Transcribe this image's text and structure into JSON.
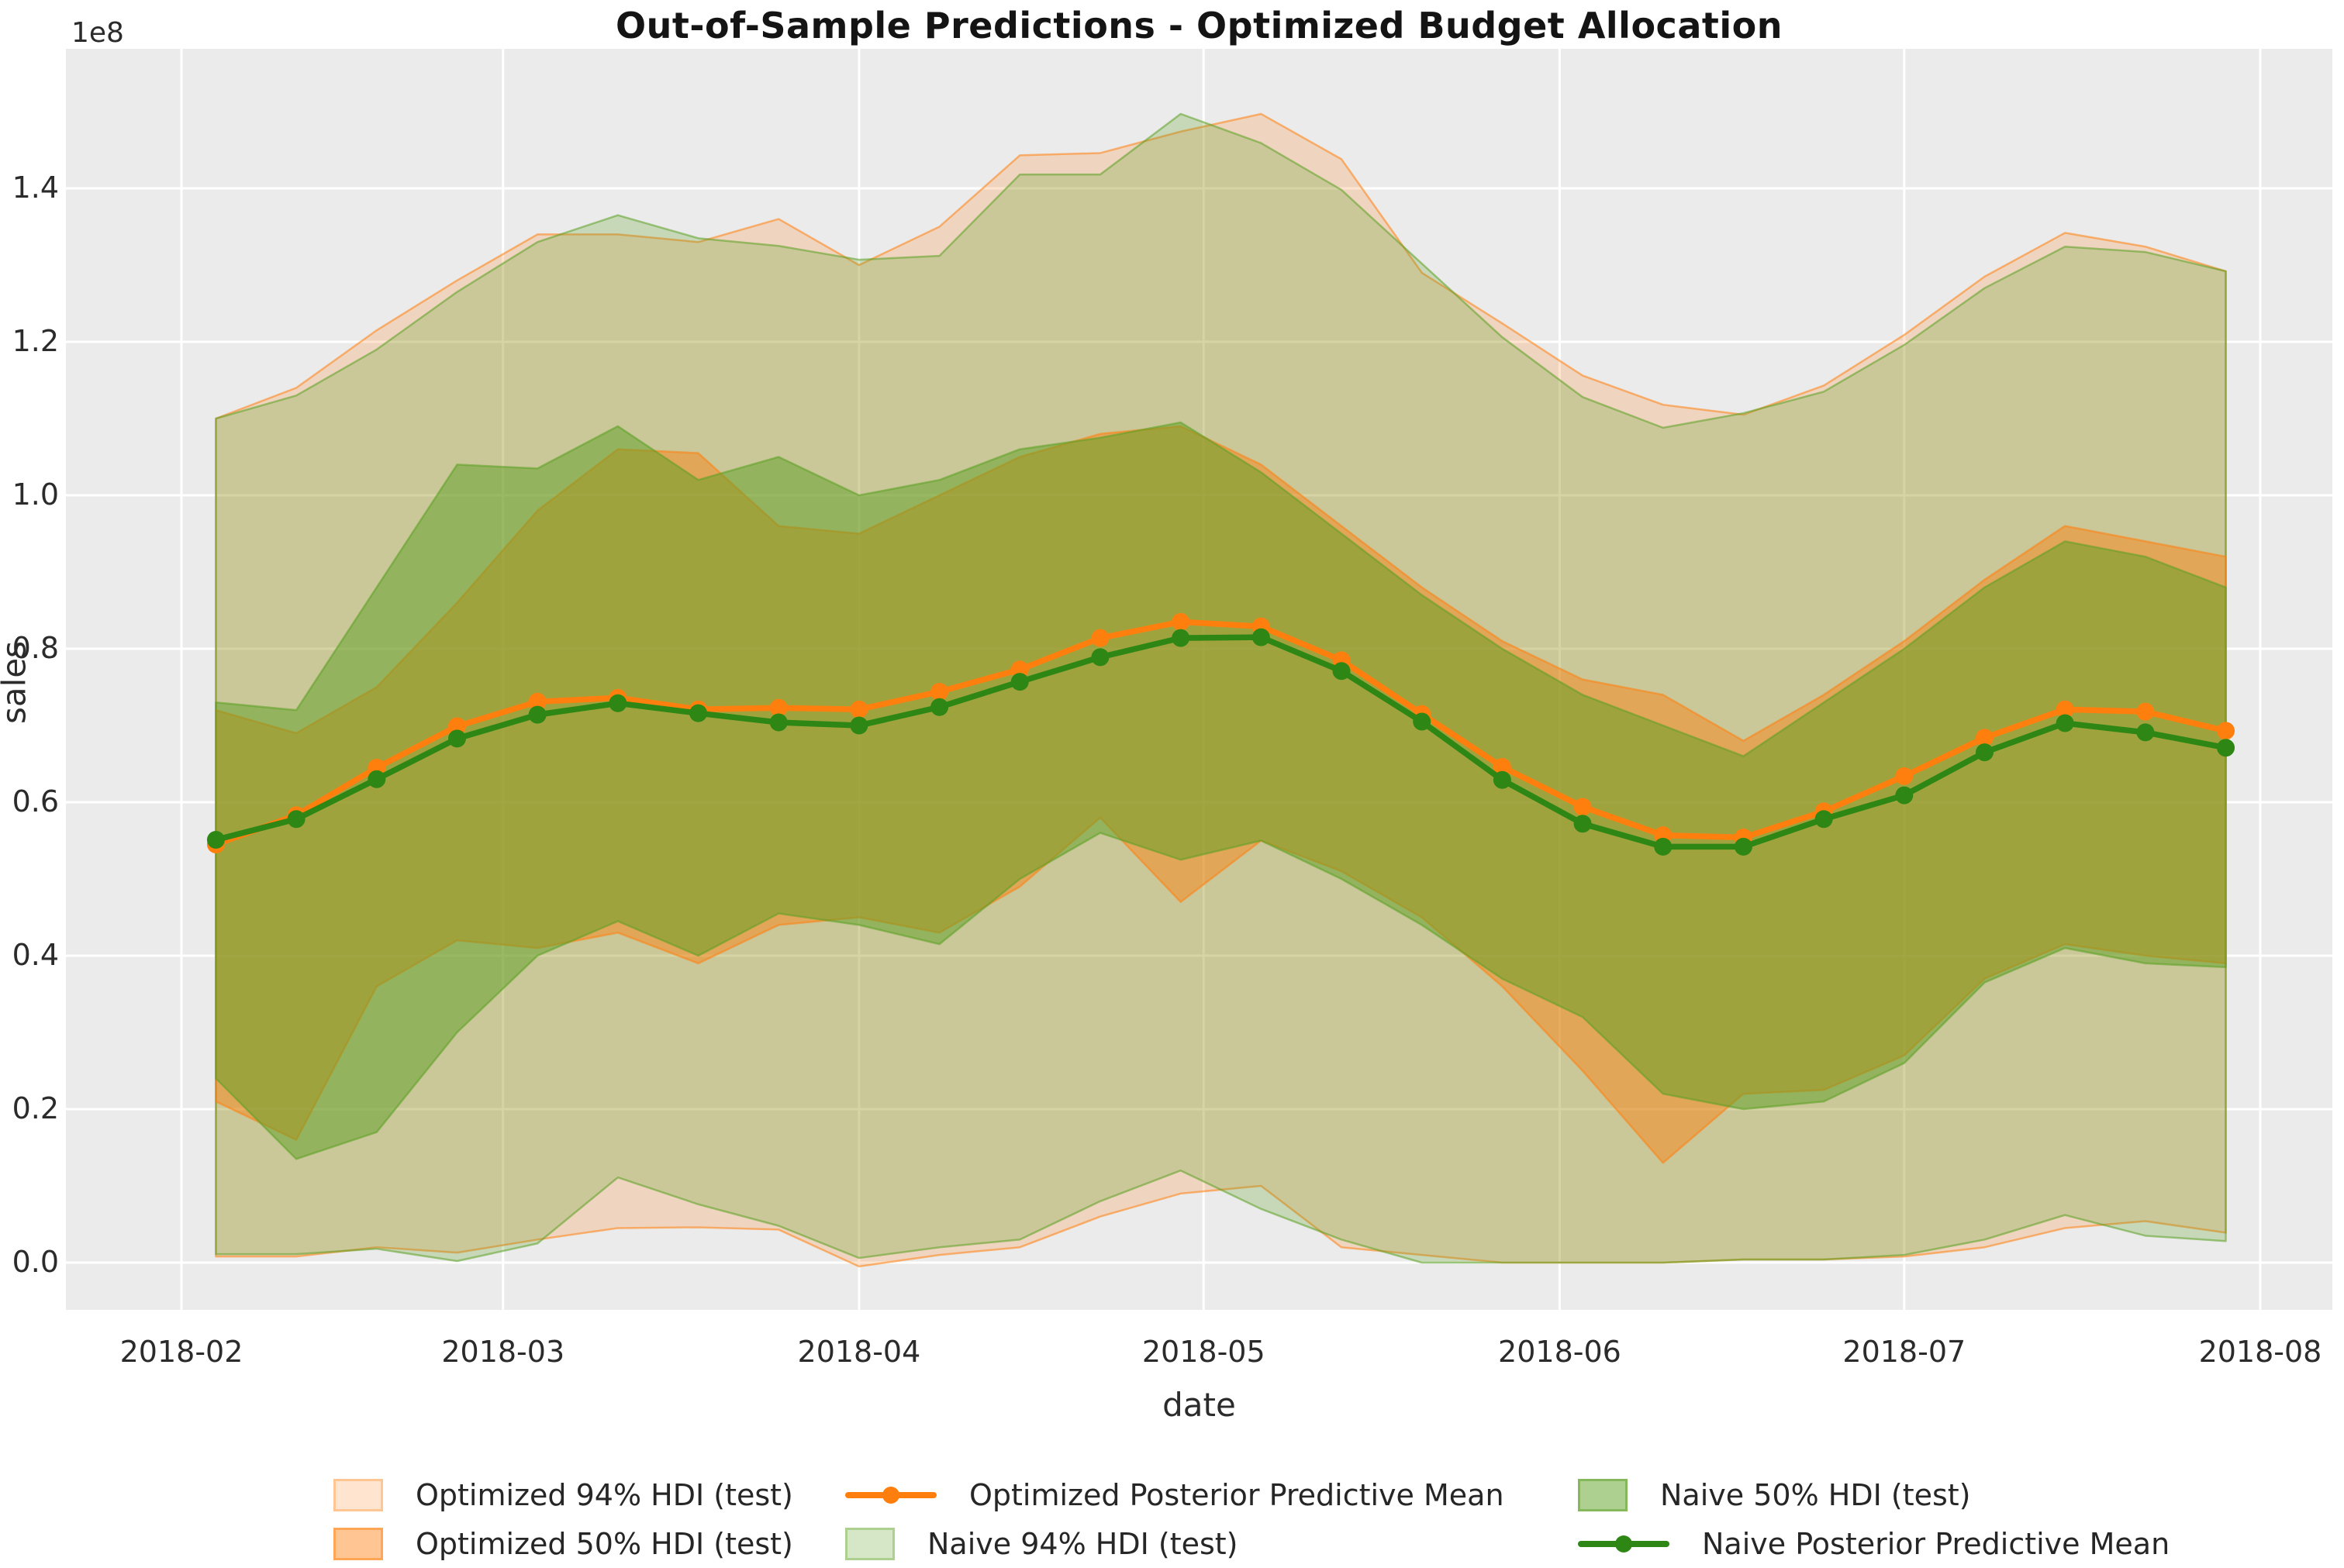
{
  "title": "Out-of-Sample Predictions - Optimized Budget Allocation",
  "axes": {
    "xlabel": "date",
    "ylabel": "sales",
    "offset_label": "1e8",
    "x_ticks": [
      {
        "label": "2018-02",
        "date": "2018-02-01"
      },
      {
        "label": "2018-03",
        "date": "2018-03-01"
      },
      {
        "label": "2018-04",
        "date": "2018-04-01"
      },
      {
        "label": "2018-05",
        "date": "2018-05-01"
      },
      {
        "label": "2018-06",
        "date": "2018-06-01"
      },
      {
        "label": "2018-07",
        "date": "2018-07-01"
      },
      {
        "label": "2018-08",
        "date": "2018-08-01"
      }
    ],
    "y_ticks": [
      "0.0",
      "0.2",
      "0.4",
      "0.6",
      "0.8",
      "1.0",
      "1.2",
      "1.4"
    ]
  },
  "colors": {
    "optimized": "#ff7f0e",
    "naive_line": "#2e8714",
    "naive_fill": "#5ba023",
    "plot_bg": "#ebebeb",
    "grid": "#ffffff",
    "text": "#262626"
  },
  "legend": {
    "columns": [
      [
        {
          "label": "Optimized 94% HDI (test)",
          "swatch": "patch",
          "color": "#ff7f0e",
          "alpha": 0.2
        },
        {
          "label": "Optimized 50% HDI (test)",
          "swatch": "patch",
          "color": "#ff7f0e",
          "alpha": 0.45
        }
      ],
      [
        {
          "label": "Optimized Posterior Predictive Mean",
          "swatch": "line",
          "color": "#ff7f0e"
        },
        {
          "label": "Naive 94% HDI (test)",
          "swatch": "patch",
          "color": "#5ba023",
          "alpha": 0.25
        }
      ],
      [
        {
          "label": "Naive 50% HDI (test)",
          "swatch": "patch",
          "color": "#5ba023",
          "alpha": 0.5
        },
        {
          "label": "Naive Posterior Predictive Mean",
          "swatch": "line",
          "color": "#2e8714"
        }
      ]
    ]
  },
  "chart_data": {
    "type": "line",
    "title": "Out-of-Sample Predictions - Optimized Budget Allocation",
    "xlabel": "date",
    "ylabel": "sales",
    "units_note": "all y values in 1e8 sales",
    "ylim": [
      -0.06,
      1.58
    ],
    "xlim": [
      "2018-01-22",
      "2018-08-07"
    ],
    "grid": true,
    "legend_position": "below",
    "x": [
      "2018-02-04",
      "2018-02-11",
      "2018-02-18",
      "2018-02-25",
      "2018-03-04",
      "2018-03-11",
      "2018-03-18",
      "2018-03-25",
      "2018-04-01",
      "2018-04-08",
      "2018-04-15",
      "2018-04-22",
      "2018-04-29",
      "2018-05-06",
      "2018-05-13",
      "2018-05-20",
      "2018-05-27",
      "2018-06-03",
      "2018-06-10",
      "2018-06-17",
      "2018-06-24",
      "2018-07-01",
      "2018-07-08",
      "2018-07-15",
      "2018-07-22",
      "2018-07-29"
    ],
    "series": [
      {
        "name": "Optimized 94% HDI (test)",
        "kind": "band",
        "color": "#ff7f0e",
        "alpha": 0.2,
        "upper": [
          1.1,
          1.14,
          1.215,
          1.28,
          1.34,
          1.34,
          1.33,
          1.36,
          1.3,
          1.35,
          1.443,
          1.446,
          1.474,
          1.497,
          1.438,
          1.29,
          1.224,
          1.156,
          1.118,
          1.105,
          1.143,
          1.209,
          1.285,
          1.342,
          1.324,
          1.292
        ],
        "lower": [
          0.008,
          0.008,
          0.02,
          0.013,
          0.03,
          0.045,
          0.046,
          0.043,
          -0.005,
          0.01,
          0.02,
          0.06,
          0.09,
          0.1,
          0.02,
          0.01,
          0.0,
          0.0,
          0.0,
          0.004,
          0.004,
          0.008,
          0.02,
          0.045,
          0.054,
          0.039
        ]
      },
      {
        "name": "Naive 94% HDI (test)",
        "kind": "band",
        "color": "#5ba023",
        "alpha": 0.25,
        "upper": [
          1.1,
          1.13,
          1.19,
          1.265,
          1.33,
          1.365,
          1.335,
          1.325,
          1.307,
          1.312,
          1.418,
          1.418,
          1.497,
          1.459,
          1.398,
          1.302,
          1.206,
          1.128,
          1.088,
          1.107,
          1.135,
          1.196,
          1.27,
          1.324,
          1.317,
          1.292
        ],
        "lower": [
          0.011,
          0.011,
          0.018,
          0.002,
          0.025,
          0.111,
          0.076,
          0.048,
          0.006,
          0.02,
          0.03,
          0.08,
          0.12,
          0.07,
          0.03,
          0.0,
          0.0,
          0.0,
          0.0,
          0.004,
          0.004,
          0.01,
          0.03,
          0.062,
          0.035,
          0.028
        ]
      },
      {
        "name": "Optimized 50% HDI (test)",
        "kind": "band",
        "color": "#ff7f0e",
        "alpha": 0.45,
        "upper": [
          0.72,
          0.69,
          0.75,
          0.86,
          0.98,
          1.06,
          1.055,
          0.96,
          0.95,
          1.0,
          1.05,
          1.08,
          1.09,
          1.04,
          0.96,
          0.88,
          0.81,
          0.76,
          0.74,
          0.68,
          0.74,
          0.81,
          0.89,
          0.96,
          0.94,
          0.92
        ],
        "lower": [
          0.21,
          0.16,
          0.36,
          0.42,
          0.41,
          0.43,
          0.39,
          0.44,
          0.45,
          0.43,
          0.49,
          0.58,
          0.47,
          0.55,
          0.51,
          0.45,
          0.36,
          0.25,
          0.13,
          0.22,
          0.225,
          0.27,
          0.37,
          0.415,
          0.4,
          0.39
        ]
      },
      {
        "name": "Naive 50% HDI (test)",
        "kind": "band",
        "color": "#5ba023",
        "alpha": 0.5,
        "upper": [
          0.73,
          0.72,
          0.88,
          1.04,
          1.035,
          1.09,
          1.02,
          1.05,
          1.0,
          1.02,
          1.06,
          1.075,
          1.095,
          1.03,
          0.95,
          0.87,
          0.8,
          0.74,
          0.7,
          0.66,
          0.73,
          0.8,
          0.88,
          0.94,
          0.92,
          0.88
        ],
        "lower": [
          0.24,
          0.135,
          0.17,
          0.3,
          0.4,
          0.445,
          0.4,
          0.455,
          0.44,
          0.415,
          0.5,
          0.56,
          0.525,
          0.55,
          0.5,
          0.44,
          0.37,
          0.32,
          0.22,
          0.2,
          0.21,
          0.26,
          0.365,
          0.41,
          0.39,
          0.385
        ]
      },
      {
        "name": "Optimized Posterior Predictive Mean",
        "kind": "line",
        "color": "#ff7f0e",
        "values": [
          0.545,
          0.583,
          0.645,
          0.699,
          0.731,
          0.736,
          0.721,
          0.723,
          0.721,
          0.744,
          0.773,
          0.814,
          0.835,
          0.829,
          0.785,
          0.715,
          0.646,
          0.594,
          0.557,
          0.554,
          0.588,
          0.634,
          0.684,
          0.721,
          0.718,
          0.693
        ]
      },
      {
        "name": "Naive Posterior Predictive Mean",
        "kind": "line",
        "color": "#2e8714",
        "values": [
          0.551,
          0.578,
          0.63,
          0.683,
          0.714,
          0.729,
          0.716,
          0.704,
          0.7,
          0.724,
          0.757,
          0.789,
          0.814,
          0.815,
          0.771,
          0.705,
          0.629,
          0.572,
          0.542,
          0.542,
          0.578,
          0.609,
          0.665,
          0.703,
          0.691,
          0.671
        ]
      }
    ]
  }
}
